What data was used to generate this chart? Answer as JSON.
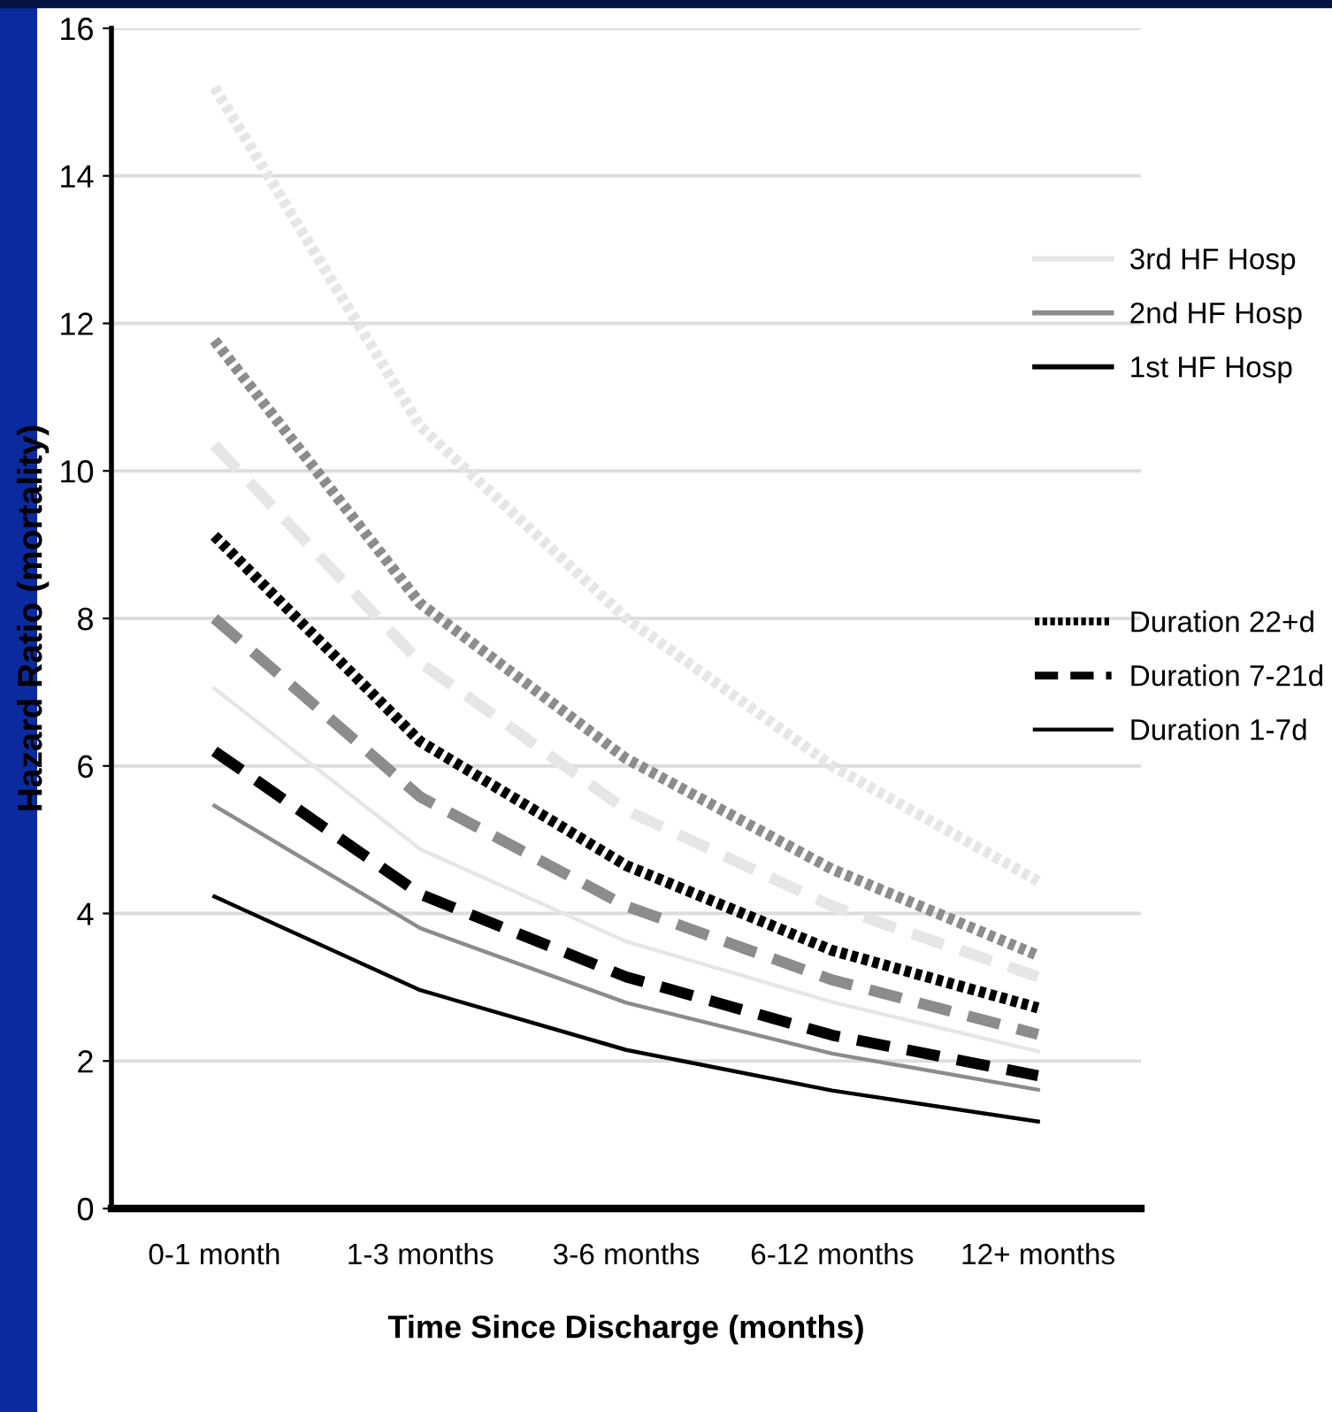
{
  "chart_data": {
    "type": "line",
    "xlabel": "Time Since Discharge (months)",
    "ylabel": "Hazard Ratio (mortality)",
    "categories": [
      "0-1 month",
      "1-3 months",
      "3-6 months",
      "6-12 months",
      "12+ months"
    ],
    "ylim": [
      0,
      16
    ],
    "yticks": [
      0,
      2,
      4,
      6,
      8,
      10,
      12,
      14,
      16
    ],
    "grid": "y",
    "legend": "right",
    "marker": "none",
    "annotations": [
      "Duration 1-7d"
    ],
    "series": [
      {
        "color": "#e6e6e6",
        "line_style": "dotted",
        "values": [
          15.2,
          10.6,
          8.0,
          6.0,
          4.44
        ]
      },
      {
        "color": "#8c8c8c",
        "line_style": "dotted",
        "values": [
          11.77,
          8.2,
          6.1,
          4.6,
          3.43
        ]
      },
      {
        "name": "Duration 22+d",
        "color": "#000000",
        "line_style": "dotted",
        "values": [
          9.12,
          6.33,
          4.65,
          3.5,
          2.72
        ]
      },
      {
        "color": "#e6e6e6",
        "line_style": "dashed",
        "values": [
          10.35,
          7.4,
          5.4,
          4.1,
          3.14
        ]
      },
      {
        "color": "#8c8c8c",
        "line_style": "dashed",
        "values": [
          8.0,
          5.58,
          4.1,
          3.1,
          2.36
        ]
      },
      {
        "name": "Duration 7-21d",
        "color": "#000000",
        "line_style": "dashed",
        "values": [
          6.2,
          4.26,
          3.14,
          2.35,
          1.8
        ]
      },
      {
        "name": "3rd HF Hosp",
        "color": "#e6e6e6",
        "line_style": "solid",
        "values": [
          7.05,
          4.87,
          3.62,
          2.8,
          2.13
        ]
      },
      {
        "name": "2nd HF Hosp",
        "color": "#8c8c8c",
        "line_style": "solid",
        "values": [
          5.46,
          3.8,
          2.79,
          2.1,
          1.61
        ]
      },
      {
        "name": "1st HF Hosp",
        "color": "#000000",
        "line_style": "solid",
        "values": [
          4.23,
          2.96,
          2.15,
          1.6,
          1.18
        ]
      }
    ]
  }
}
